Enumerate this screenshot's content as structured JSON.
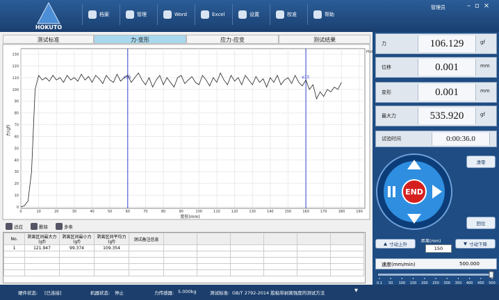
{
  "header": {
    "brand": "HOKUTO",
    "menu": [
      "档案",
      "管理",
      "Word",
      "Excel",
      "设置",
      "校准",
      "帮助"
    ],
    "user": "管理员"
  },
  "tabs": [
    "测试标准",
    "力-变形",
    "应力-应变",
    "测试结果"
  ],
  "chart_data": {
    "type": "line",
    "xlabel": "变形(mm)",
    "ylabel": "力(gf)",
    "x": [
      0,
      2,
      4,
      6,
      8,
      10,
      12,
      14,
      16,
      18,
      20,
      22,
      24,
      26,
      28,
      30,
      32,
      34,
      36,
      38,
      40,
      42,
      44,
      46,
      48,
      50,
      52,
      54,
      56,
      58,
      60,
      62,
      64,
      66,
      68,
      70,
      72,
      74,
      76,
      78,
      80,
      82,
      84,
      86,
      88,
      90,
      92,
      94,
      96,
      98,
      100,
      102,
      104,
      106,
      108,
      110,
      112,
      114,
      116,
      118,
      120,
      122,
      124,
      126,
      128,
      130,
      132,
      134,
      136,
      138,
      140,
      142,
      144,
      146,
      148,
      150,
      152,
      154,
      156,
      158,
      160,
      162,
      164,
      166,
      168,
      170,
      172,
      174,
      176,
      178,
      180
    ],
    "series": [
      {
        "name": "Plot",
        "color": "#222222",
        "values": [
          0,
          1,
          5,
          30,
          100,
          112,
          108,
          110,
          107,
          112,
          108,
          110,
          106,
          112,
          108,
          110,
          107,
          113,
          108,
          111,
          106,
          112,
          109,
          105,
          112,
          108,
          106,
          113,
          107,
          110,
          112,
          106,
          110,
          114,
          108,
          104,
          110,
          102,
          108,
          112,
          104,
          110,
          106,
          102,
          110,
          112,
          105,
          108,
          111,
          106,
          104,
          112,
          108,
          103,
          110,
          106,
          114,
          108,
          104,
          112,
          107,
          110,
          104,
          112,
          108,
          104,
          111,
          106,
          109,
          102,
          110,
          106,
          112,
          104,
          108,
          110,
          105,
          112,
          106,
          103,
          108,
          100,
          104,
          92,
          98,
          94,
          100,
          98,
          102,
          100,
          106
        ]
      }
    ],
    "markers": [
      {
        "x": 60,
        "label": "s15",
        "color": "#3344cc"
      },
      {
        "x": 160,
        "label": "e15",
        "color": "#3344cc"
      }
    ],
    "xlim": [
      0,
      190
    ],
    "xticks": [
      0,
      10,
      20,
      30,
      40,
      50,
      60,
      70,
      80,
      90,
      100,
      110,
      120,
      130,
      140,
      150,
      160,
      170,
      180,
      190
    ],
    "ylim": [
      0,
      130
    ],
    "yticks": [
      0,
      10,
      20,
      30,
      40,
      50,
      60,
      70,
      80,
      90,
      100,
      110,
      120,
      130
    ],
    "grid": true
  },
  "toolbar": [
    "适应",
    "删除",
    "多条"
  ],
  "table": {
    "columns": [
      {
        "title": "No."
      },
      {
        "title": "剥离区间最大力",
        "unit": "(gf)"
      },
      {
        "title": "剥离区间最小力",
        "unit": "(gf)"
      },
      {
        "title": "剥离区间平均力",
        "unit": "(gf)"
      },
      {
        "title": "测试备注信息"
      }
    ],
    "rows": [
      [
        1,
        121.947,
        99.374,
        109.354
      ]
    ]
  },
  "readouts": [
    {
      "label": "力",
      "value": "106.129",
      "unit": "gf"
    },
    {
      "label": "位移",
      "value": "0.001",
      "unit": "mm"
    },
    {
      "label": "变形",
      "value": "0.001",
      "unit": "mm"
    },
    {
      "label": "最大力",
      "value": "535.920",
      "unit": "gf"
    }
  ],
  "timer": {
    "label": "试验时间",
    "value": "0:00:36.0"
  },
  "controls": {
    "end": "END",
    "zero": "清零",
    "home": "回位",
    "jog_up": "寸动上升",
    "jog_down": "寸动下降",
    "distance_label": "距离(mm)",
    "distance": "150",
    "speed_label": "速度(mm/min)",
    "speed": "500.000"
  },
  "slider": [
    "0.1",
    "50",
    "100",
    "150",
    "200",
    "250",
    "300",
    "350",
    "400",
    "450",
    "500"
  ],
  "status": [
    {
      "label": "硬件状态:",
      "value": "[已连接]"
    },
    {
      "label": "机器状态:",
      "value": "停止"
    },
    {
      "label": "力传感器:",
      "value": "5.000kg"
    },
    {
      "label": "测试标准:",
      "value": "GB/T 2792-2014 胶粘带剥离强度的测试方法"
    }
  ]
}
